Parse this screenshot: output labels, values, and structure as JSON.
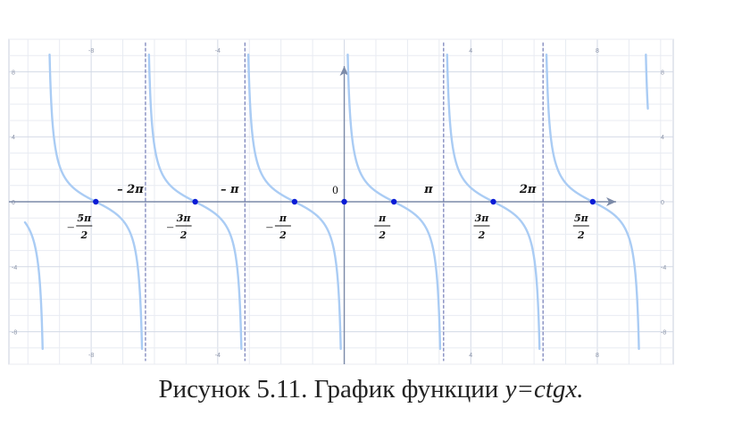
{
  "caption": {
    "prefix": "Рисунок 5.11. График функции ",
    "formula": "y=ctgx."
  },
  "chart_data": {
    "type": "line",
    "function": "cot(x)",
    "xlim": [
      -10.6,
      10.4
    ],
    "ylim": [
      -10,
      10
    ],
    "grid": true,
    "x_ticks": [
      {
        "value": -8,
        "label": "-8"
      },
      {
        "value": -4,
        "label": "-4"
      },
      {
        "value": 4,
        "label": "4"
      },
      {
        "value": 8,
        "label": "8"
      }
    ],
    "y_ticks": [
      {
        "value": 8,
        "label": "8"
      },
      {
        "value": 4,
        "label": "4"
      },
      {
        "value": 0,
        "label": "0"
      },
      {
        "value": -4,
        "label": "-4"
      },
      {
        "value": -8,
        "label": "-8"
      }
    ],
    "asymptotes": [
      -6.2832,
      -3.1416,
      0,
      3.1416,
      6.2832
    ],
    "zeros": [
      -7.854,
      -4.712,
      -1.5708,
      1.5708,
      4.712,
      7.854
    ],
    "origin_label": "0",
    "asymptote_labels": [
      {
        "text": "– 2π",
        "x": -6.2832
      },
      {
        "text": "– π",
        "x": -3.1416
      },
      {
        "text": "π",
        "x": 3.1416
      },
      {
        "text": "2π",
        "x": 6.2832
      }
    ],
    "zero_labels": [
      {
        "sign": "–",
        "num": "5π",
        "den": "2",
        "x": -7.854
      },
      {
        "sign": "–",
        "num": "3π",
        "den": "2",
        "x": -4.712
      },
      {
        "sign": "–",
        "num": "π",
        "den": "2",
        "x": -1.5708
      },
      {
        "sign": "",
        "num": "π",
        "den": "2",
        "x": 1.5708
      },
      {
        "sign": "",
        "num": "3π",
        "den": "2",
        "x": 4.712
      },
      {
        "sign": "",
        "num": "5π",
        "den": "2",
        "x": 7.854
      }
    ],
    "colors": {
      "curve": "#aaccf4",
      "axis": "#7b8aa8",
      "grid_major": "#d3d9e6",
      "grid_minor": "#e8ebf2",
      "asymptote": "#5560a8",
      "zero_point": "#0a1bd6"
    }
  }
}
